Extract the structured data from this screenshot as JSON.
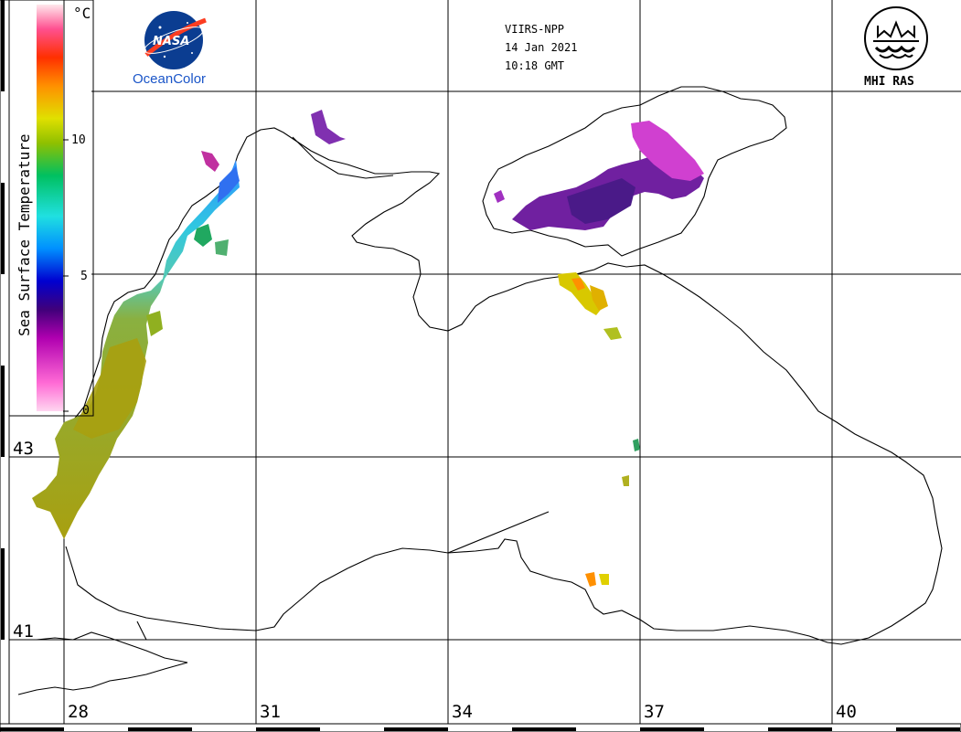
{
  "header": {
    "sensor": "VIIRS-NPP",
    "date": "14 Jan 2021",
    "time": "10:18 GMT"
  },
  "logos": {
    "nasa_text": "NASA",
    "oceancolor_text": "OceanColor",
    "mhi_text": "MHI RAS"
  },
  "colorbar": {
    "title": "Sea Surface Temperature",
    "unit": "°C",
    "ticks": [
      "10",
      "5",
      "0"
    ],
    "colors": [
      "#ffd6f0",
      "#ff6ad5",
      "#b000b0",
      "#40007a",
      "#0000d0",
      "#0090ff",
      "#20e0e0",
      "#00c060",
      "#90c000",
      "#e0e000",
      "#ff9000",
      "#ff3000",
      "#ff5090",
      "#ffe8ec"
    ]
  },
  "axes": {
    "longitude_labels": [
      "28",
      "31",
      "34",
      "37",
      "40"
    ],
    "latitude_labels": [
      "43",
      "41"
    ]
  },
  "icons": {
    "nasa_logo": "nasa-meatball-icon",
    "mhi_logo": "mhi-ras-emblem-icon"
  }
}
